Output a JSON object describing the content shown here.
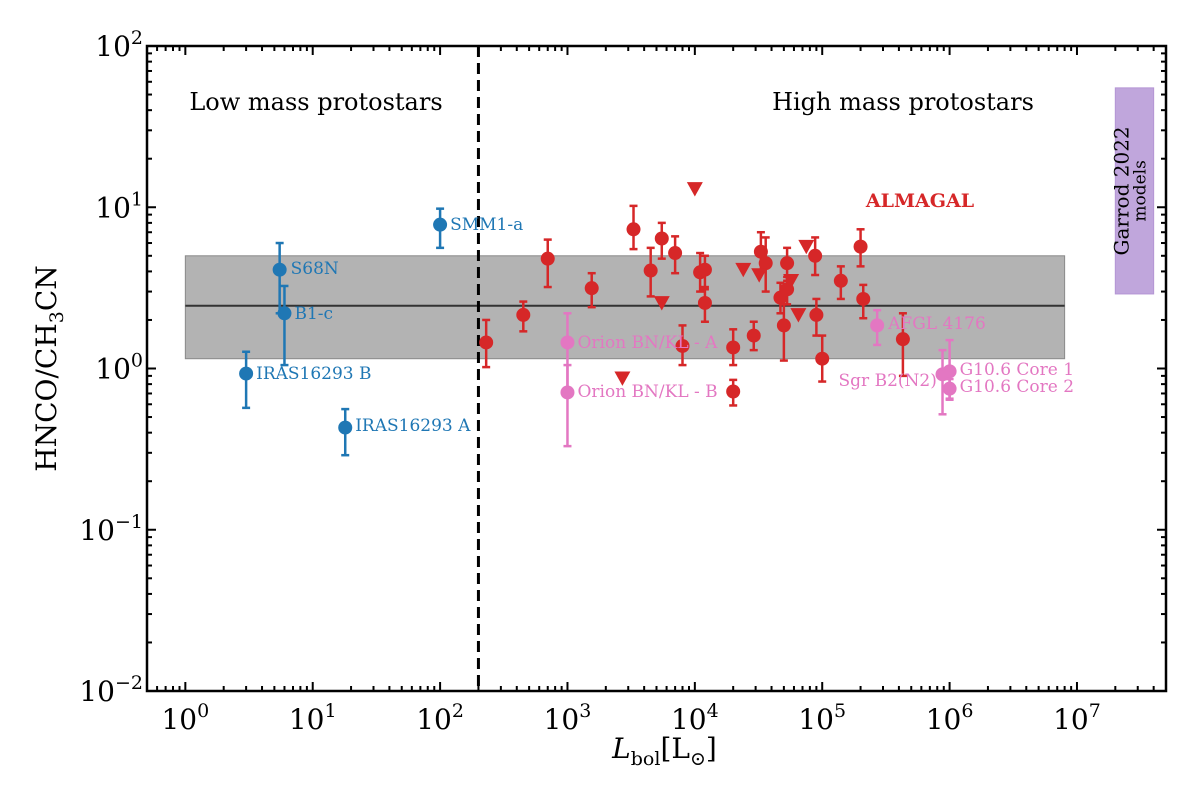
{
  "chart_data": {
    "type": "scatter",
    "xscale": "log",
    "yscale": "log",
    "xlim": [
      0.5,
      50000000
    ],
    "ylim": [
      0.01,
      100
    ],
    "xlabel": {
      "main": "L",
      "sub": "bol",
      "unit": "[L",
      "unit_sub": "⊙",
      "close": "]"
    },
    "ylabel": {
      "pre": "HNCO/CH",
      "sub": "3",
      "post": "CN"
    },
    "x_ticks": [
      {
        "value": 1,
        "base": "10",
        "exp": "0"
      },
      {
        "value": 10,
        "base": "10",
        "exp": "1"
      },
      {
        "value": 100,
        "base": "10",
        "exp": "2"
      },
      {
        "value": 1000,
        "base": "10",
        "exp": "3"
      },
      {
        "value": 10000,
        "base": "10",
        "exp": "4"
      },
      {
        "value": 100000,
        "base": "10",
        "exp": "5"
      },
      {
        "value": 1000000,
        "base": "10",
        "exp": "6"
      },
      {
        "value": 10000000,
        "base": "10",
        "exp": "7"
      }
    ],
    "y_ticks": [
      {
        "value": 0.01,
        "base": "10",
        "exp": "−2"
      },
      {
        "value": 0.1,
        "base": "10",
        "exp": "−1"
      },
      {
        "value": 1,
        "base": "10",
        "exp": "0"
      },
      {
        "value": 10,
        "base": "10",
        "exp": "1"
      },
      {
        "value": 100,
        "base": "10",
        "exp": "2"
      }
    ],
    "region_labels": {
      "low": "Low mass protostars",
      "high": "High mass protostars"
    },
    "divider_x": 200,
    "shaded_band": {
      "x_range": [
        1,
        8000000
      ],
      "y_range": [
        1.15,
        5.0
      ],
      "median": 2.45
    },
    "garrod_models": {
      "line1": "Garrod 2022",
      "line2": "models",
      "x_range": [
        20000000,
        40000000
      ],
      "y_range": [
        2.9,
        55
      ],
      "color": "#c0a6dc"
    },
    "almagal_label": "ALMAGAL",
    "colors": {
      "low_mass": "#1f77b4",
      "almagal": "#d62728",
      "literature_high": "#e377c2",
      "band": "#b3b3b3"
    },
    "series": [
      {
        "name": "Low mass protostars",
        "color": "#1f77b4",
        "points": [
          {
            "label": "SMM1-a",
            "x": 100,
            "y": 7.8,
            "ylo": 5.6,
            "yhi": 9.8
          },
          {
            "label": "S68N",
            "x": 5.5,
            "y": 4.1,
            "ylo": 2.2,
            "yhi": 6.0
          },
          {
            "label": "B1-c",
            "x": 6.0,
            "y": 2.2,
            "ylo": 1.05,
            "yhi": 3.25
          },
          {
            "label": "IRAS16293 B",
            "x": 3.0,
            "y": 0.93,
            "ylo": 0.57,
            "yhi": 1.27
          },
          {
            "label": "IRAS16293 A",
            "x": 18,
            "y": 0.43,
            "ylo": 0.29,
            "yhi": 0.56
          }
        ]
      },
      {
        "name": "Literature high mass",
        "color": "#e377c2",
        "points": [
          {
            "label": "Orion BN/KL - A",
            "x": 1000,
            "y": 1.45,
            "ylo": 0.7,
            "yhi": 2.2
          },
          {
            "label": "Orion BN/KL - B",
            "x": 1000,
            "y": 0.71,
            "ylo": 0.33,
            "yhi": 1.05
          },
          {
            "label": "AFGL 4176",
            "x": 270000,
            "y": 1.85,
            "ylo": 1.4,
            "yhi": 2.3
          },
          {
            "label": "Sgr B2(N2)",
            "x": 880000,
            "y": 0.92,
            "ylo": 0.52,
            "yhi": 1.3
          },
          {
            "label": "G10.6 Core 1",
            "x": 1000000,
            "y": 0.96,
            "ylo": 0.65,
            "yhi": 1.5
          },
          {
            "label": "G10.6 Core 2",
            "x": 1000000,
            "y": 0.75,
            "ylo": 0.64,
            "yhi": 0.86
          }
        ]
      },
      {
        "name": "ALMAGAL",
        "color": "#d62728",
        "points": [
          {
            "x": 230,
            "y": 1.45,
            "ylo": 1.02,
            "yhi": 2.0
          },
          {
            "x": 450,
            "y": 2.15,
            "ylo": 1.7,
            "yhi": 2.6
          },
          {
            "x": 700,
            "y": 4.8,
            "ylo": 3.2,
            "yhi": 6.3
          },
          {
            "x": 1550,
            "y": 3.15,
            "ylo": 2.4,
            "yhi": 3.9
          },
          {
            "x": 3300,
            "y": 7.3,
            "ylo": 5.5,
            "yhi": 10.2
          },
          {
            "x": 4500,
            "y": 4.05,
            "ylo": 2.8,
            "yhi": 5.6
          },
          {
            "x": 5500,
            "y": 6.4,
            "ylo": 4.8,
            "yhi": 8.0
          },
          {
            "x": 7000,
            "y": 5.2,
            "ylo": 3.9,
            "yhi": 6.6
          },
          {
            "x": 8000,
            "y": 1.38,
            "ylo": 1.05,
            "yhi": 1.85
          },
          {
            "x": 11000,
            "y": 3.95,
            "ylo": 3.0,
            "yhi": 5.2
          },
          {
            "x": 12000,
            "y": 4.1,
            "ylo": 3.1,
            "yhi": 5.0
          },
          {
            "x": 12000,
            "y": 2.55,
            "ylo": 1.95,
            "yhi": 3.2
          },
          {
            "x": 20000,
            "y": 1.35,
            "ylo": 1.05,
            "yhi": 1.75
          },
          {
            "x": 20000,
            "y": 0.72,
            "ylo": 0.59,
            "yhi": 0.85
          },
          {
            "x": 29000,
            "y": 1.6,
            "ylo": 1.3,
            "yhi": 1.95
          },
          {
            "x": 33000,
            "y": 5.3,
            "ylo": 4.0,
            "yhi": 7.0
          },
          {
            "x": 36000,
            "y": 4.5,
            "ylo": 3.0,
            "yhi": 6.5
          },
          {
            "x": 47000,
            "y": 2.75,
            "ylo": 2.2,
            "yhi": 3.4
          },
          {
            "x": 50000,
            "y": 1.85,
            "ylo": 1.12,
            "yhi": 2.5
          },
          {
            "x": 53000,
            "y": 4.5,
            "ylo": 3.5,
            "yhi": 5.6
          },
          {
            "x": 53000,
            "y": 3.1,
            "ylo": 2.5,
            "yhi": 3.7
          },
          {
            "x": 88000,
            "y": 5.0,
            "ylo": 3.8,
            "yhi": 6.5
          },
          {
            "x": 90000,
            "y": 2.15,
            "ylo": 1.6,
            "yhi": 2.7
          },
          {
            "x": 100000,
            "y": 1.15,
            "ylo": 0.83,
            "yhi": 1.6
          },
          {
            "x": 140000,
            "y": 3.5,
            "ylo": 2.7,
            "yhi": 4.3
          },
          {
            "x": 200000,
            "y": 5.7,
            "ylo": 4.3,
            "yhi": 7.3
          },
          {
            "x": 210000,
            "y": 2.7,
            "ylo": 2.05,
            "yhi": 3.3
          },
          {
            "x": 430000,
            "y": 1.52,
            "ylo": 0.9,
            "yhi": 2.2
          }
        ]
      },
      {
        "name": "ALMAGAL upper limits",
        "color": "#d62728",
        "marker": "triangle-down",
        "points": [
          {
            "x": 10000,
            "y": 13
          },
          {
            "x": 5500,
            "y": 2.55
          },
          {
            "x": 24000,
            "y": 4.1
          },
          {
            "x": 32000,
            "y": 3.8
          },
          {
            "x": 57000,
            "y": 3.5
          },
          {
            "x": 65000,
            "y": 2.15
          },
          {
            "x": 75000,
            "y": 5.7
          },
          {
            "x": 2700,
            "y": 0.87
          }
        ]
      }
    ]
  }
}
